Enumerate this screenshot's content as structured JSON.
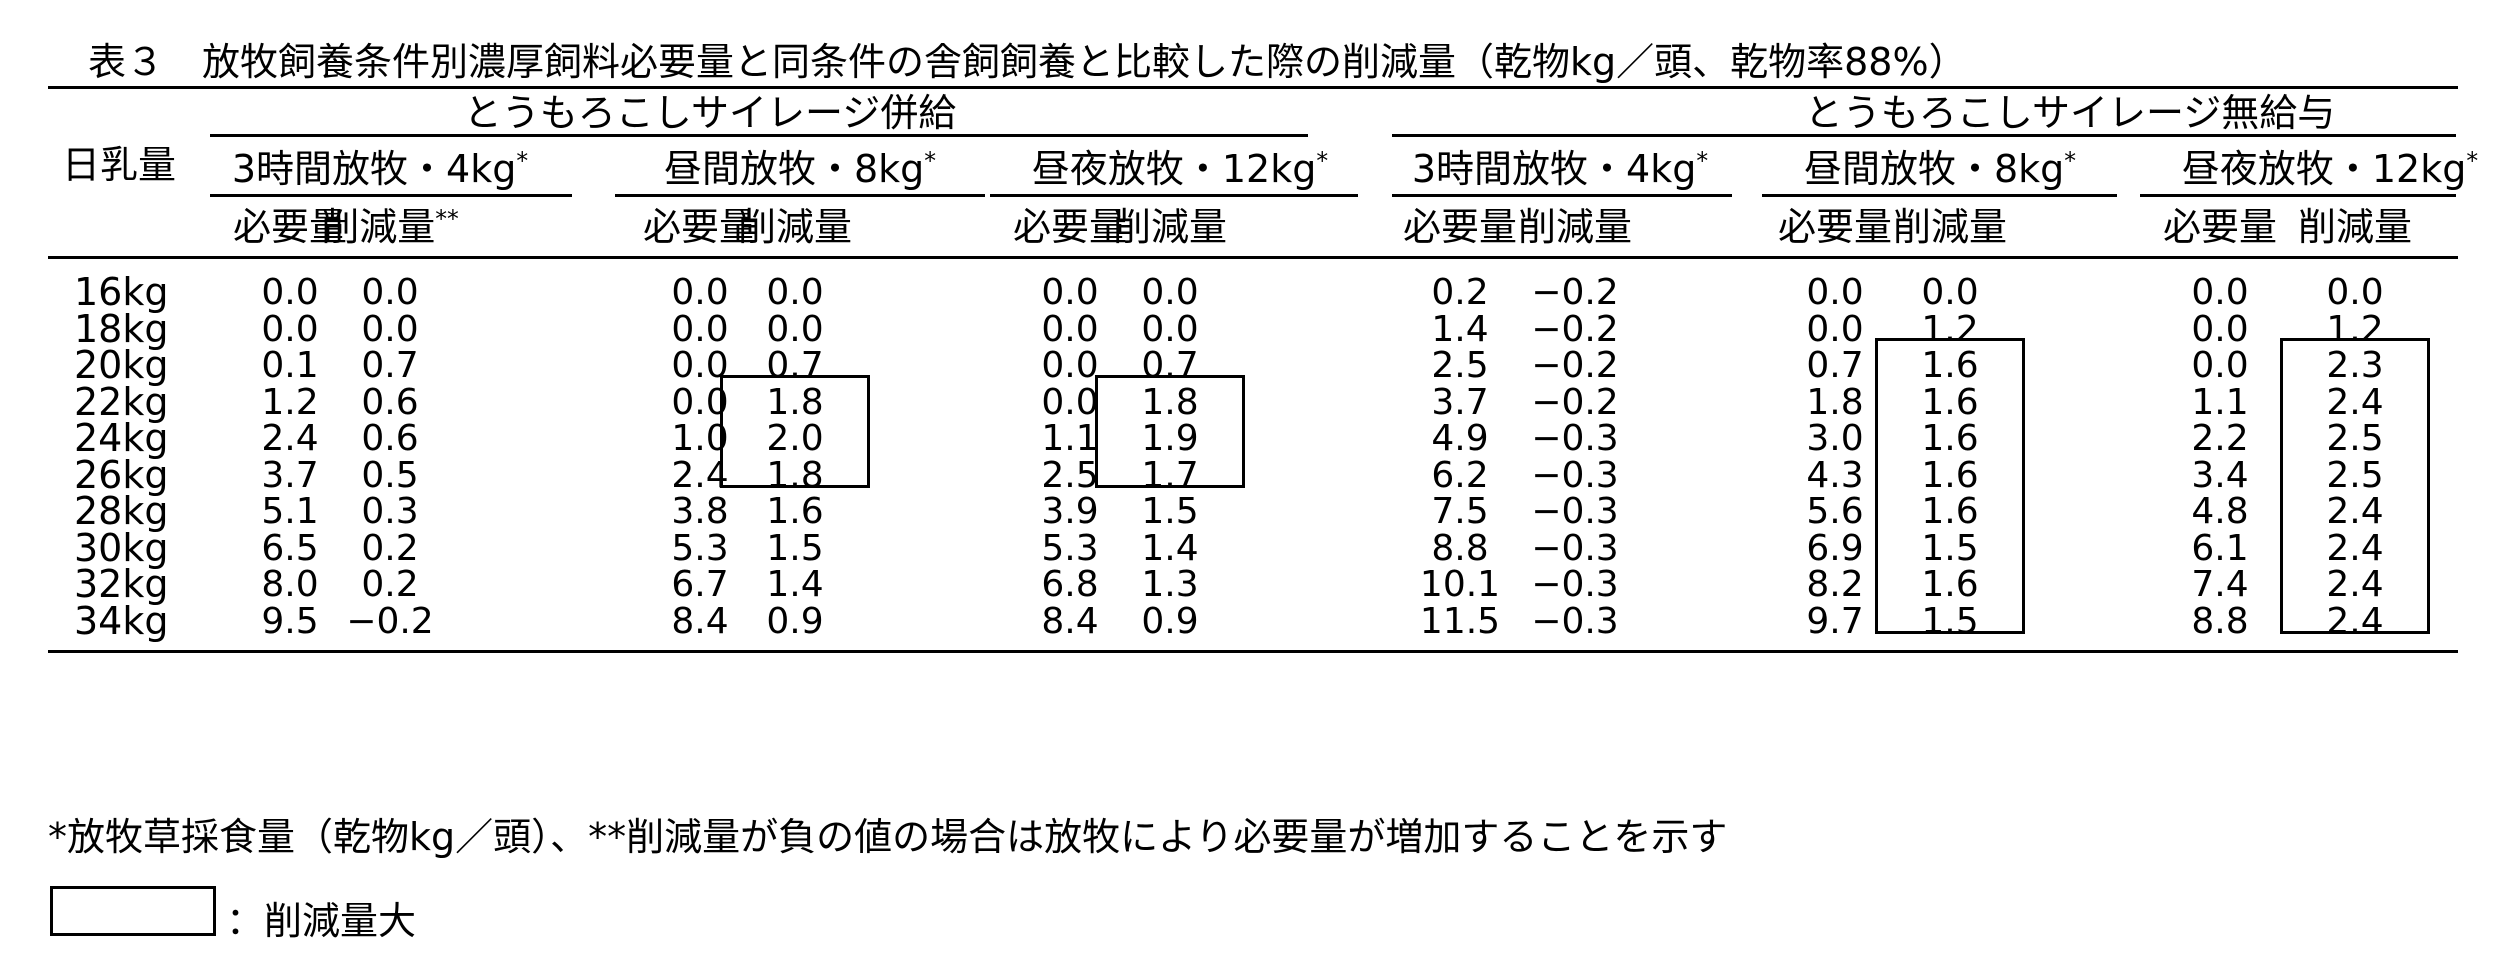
{
  "caption": "表３　放牧飼養条件別濃厚飼料必要量と同条件の舎飼飼養と比較した際の削減量（乾物kg／頭、乾物率88%）",
  "header": {
    "row_label": "日乳量",
    "groups": [
      "とうもろこしサイレージ併給",
      "とうもろこしサイレージ無給与"
    ],
    "conditions": [
      "3時間放牧・4kg",
      "昼間放牧・8kg",
      "昼夜放牧・12kg"
    ],
    "condition_mark": "*",
    "col_required": "必要量",
    "col_reduction": "削減量",
    "reduction_mark": "**"
  },
  "rows": [
    {
      "milk": "16kg",
      "values": [
        "0.0",
        "0.0",
        "0.0",
        "0.0",
        "0.0",
        "0.0",
        "0.2",
        "−0.2",
        "0.0",
        "0.0",
        "0.0",
        "0.0"
      ]
    },
    {
      "milk": "18kg",
      "values": [
        "0.0",
        "0.0",
        "0.0",
        "0.0",
        "0.0",
        "0.0",
        "1.4",
        "−0.2",
        "0.0",
        "1.2",
        "0.0",
        "1.2"
      ]
    },
    {
      "milk": "20kg",
      "values": [
        "0.1",
        "0.7",
        "0.0",
        "0.7",
        "0.0",
        "0.7",
        "2.5",
        "−0.2",
        "0.7",
        "1.6",
        "0.0",
        "2.3"
      ]
    },
    {
      "milk": "22kg",
      "values": [
        "1.2",
        "0.6",
        "0.0",
        "1.8",
        "0.0",
        "1.8",
        "3.7",
        "−0.2",
        "1.8",
        "1.6",
        "1.1",
        "2.4"
      ]
    },
    {
      "milk": "24kg",
      "values": [
        "2.4",
        "0.6",
        "1.0",
        "2.0",
        "1.1",
        "1.9",
        "4.9",
        "−0.3",
        "3.0",
        "1.6",
        "2.2",
        "2.5"
      ]
    },
    {
      "milk": "26kg",
      "values": [
        "3.7",
        "0.5",
        "2.4",
        "1.8",
        "2.5",
        "1.7",
        "6.2",
        "−0.3",
        "4.3",
        "1.6",
        "3.4",
        "2.5"
      ]
    },
    {
      "milk": "28kg",
      "values": [
        "5.1",
        "0.3",
        "3.8",
        "1.6",
        "3.9",
        "1.5",
        "7.5",
        "−0.3",
        "5.6",
        "1.6",
        "4.8",
        "2.4"
      ]
    },
    {
      "milk": "30kg",
      "values": [
        "6.5",
        "0.2",
        "5.3",
        "1.5",
        "5.3",
        "1.4",
        "8.8",
        "−0.3",
        "6.9",
        "1.5",
        "6.1",
        "2.4"
      ]
    },
    {
      "milk": "32kg",
      "values": [
        "8.0",
        "0.2",
        "6.7",
        "1.4",
        "6.8",
        "1.3",
        "10.1",
        "−0.3",
        "8.2",
        "1.6",
        "7.4",
        "2.4"
      ]
    },
    {
      "milk": "34kg",
      "values": [
        "9.5",
        "−0.2",
        "8.4",
        "0.9",
        "8.4",
        "0.9",
        "11.5",
        "−0.3",
        "9.7",
        "1.5",
        "8.8",
        "2.4"
      ]
    }
  ],
  "highlighted_cells": [
    {
      "column": 4,
      "from_row": 3,
      "to_row": 5
    },
    {
      "column": 6,
      "from_row": 3,
      "to_row": 5
    },
    {
      "column": 10,
      "from_row": 2,
      "to_row": 9
    },
    {
      "column": 12,
      "from_row": 2,
      "to_row": 9
    }
  ],
  "footnote": "*放牧草採食量（乾物kg／頭）、**削減量が負の値の場合は放牧により必要量が増加することを示す",
  "legend": {
    "label": "：削減量大"
  }
}
